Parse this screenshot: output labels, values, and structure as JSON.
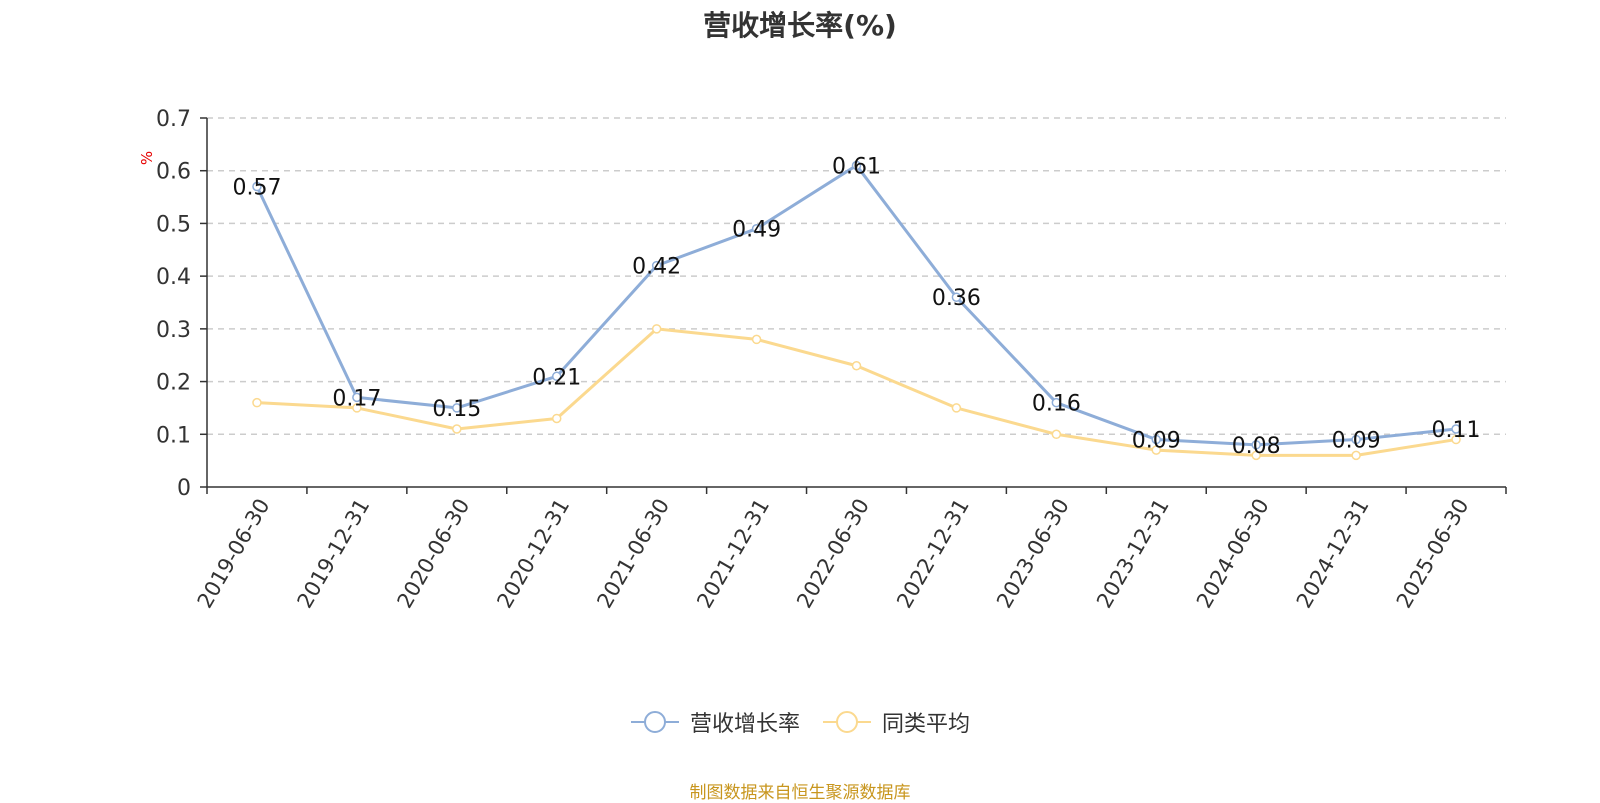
{
  "chart_data": {
    "type": "line",
    "title": "营收增长率(%)",
    "ylabel": "%",
    "xlabel": "",
    "ylim": [
      0,
      0.7
    ],
    "yticks": [
      0,
      0.1,
      0.2,
      0.3,
      0.4,
      0.5,
      0.6,
      0.7
    ],
    "grid": true,
    "legend_position": "bottom",
    "categories": [
      "2019-06-30",
      "2019-12-31",
      "2020-06-30",
      "2020-12-31",
      "2021-06-30",
      "2021-12-31",
      "2022-06-30",
      "2022-12-31",
      "2023-06-30",
      "2023-12-31",
      "2024-06-30",
      "2024-12-31",
      "2025-06-30"
    ],
    "series": [
      {
        "name": "营收增长率",
        "color": "#8eadd8",
        "labeled": true,
        "values": [
          0.57,
          0.17,
          0.15,
          0.21,
          0.42,
          0.49,
          0.61,
          0.36,
          0.16,
          0.09,
          0.08,
          0.09,
          0.11
        ]
      },
      {
        "name": "同类平均",
        "color": "#fbd98f",
        "labeled": false,
        "values": [
          0.16,
          0.15,
          0.11,
          0.13,
          0.3,
          0.28,
          0.23,
          0.15,
          0.1,
          0.07,
          0.06,
          0.06,
          0.09
        ]
      }
    ]
  },
  "footer": {
    "source": "制图数据来自恒生聚源数据库"
  }
}
